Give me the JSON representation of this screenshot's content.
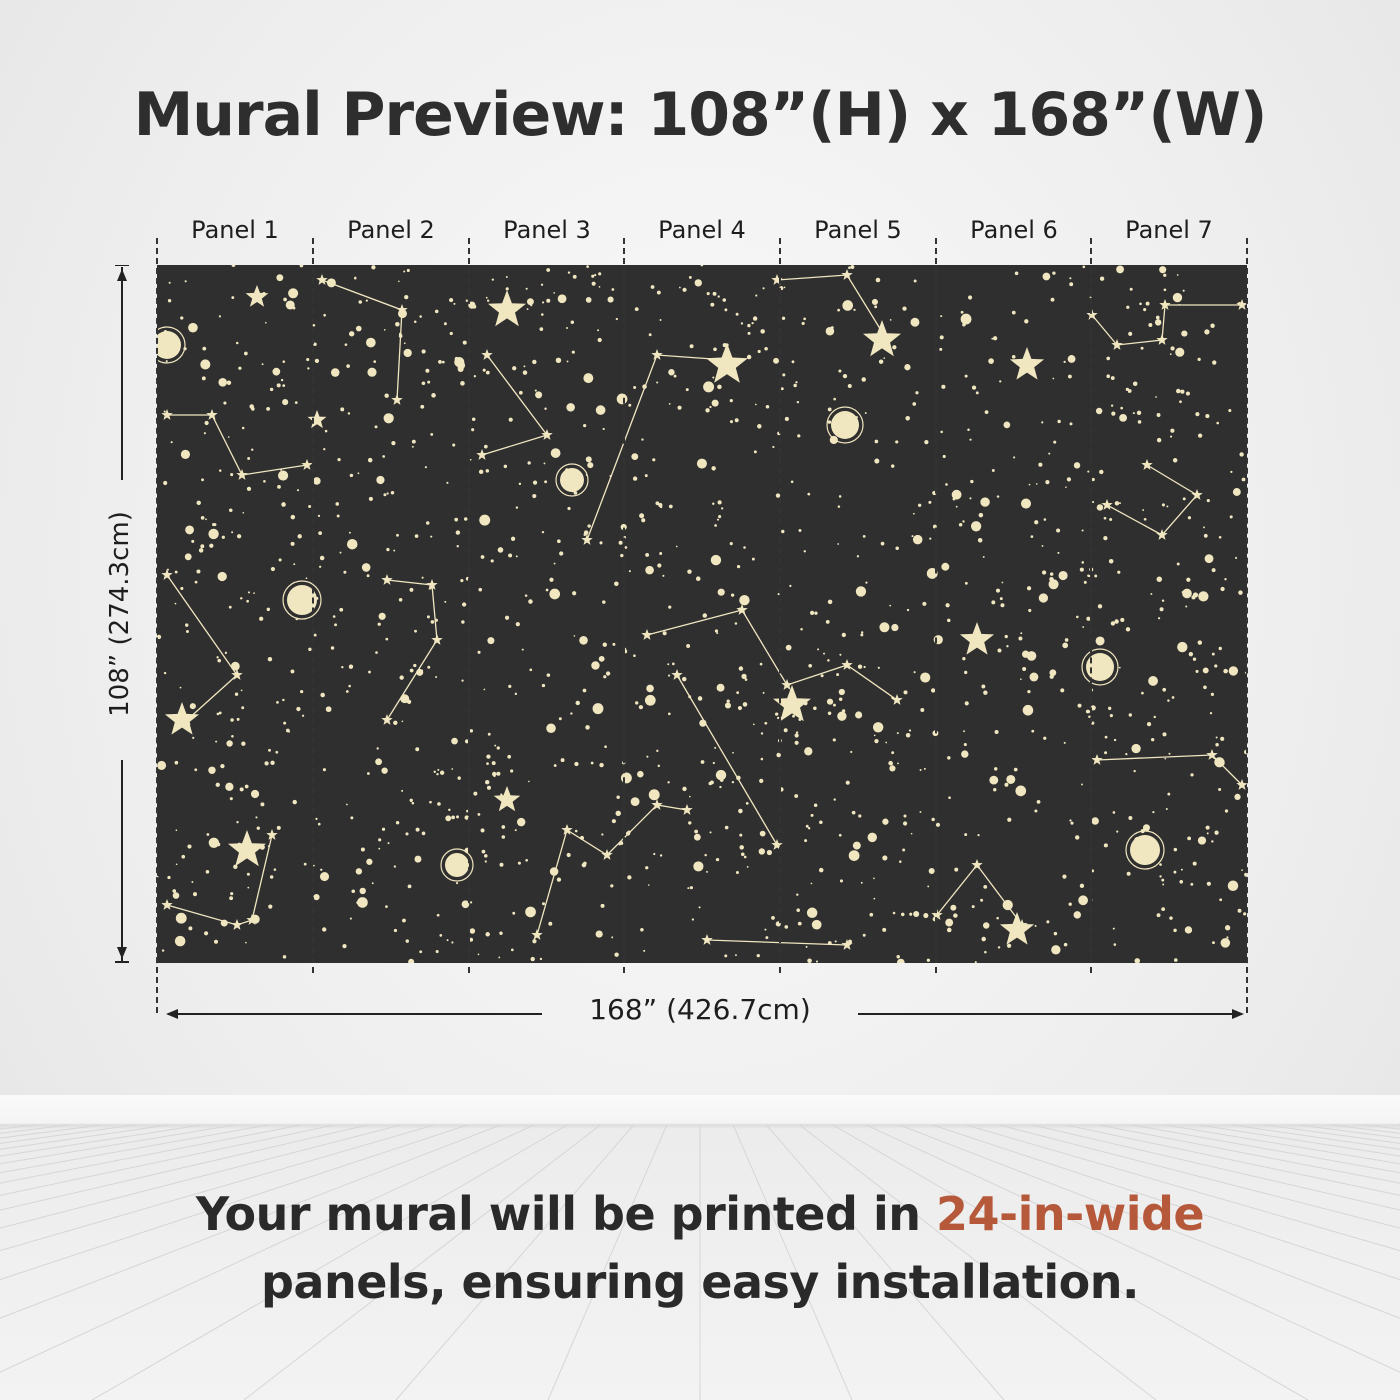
{
  "title": "Mural Preview: 108”(H) x 168”(W)",
  "panels": [
    "Panel 1",
    "Panel 2",
    "Panel 3",
    "Panel 4",
    "Panel 5",
    "Panel 6",
    "Panel 7"
  ],
  "height_dimension": "108” (274.3cm)",
  "width_dimension": "168” (426.7cm)",
  "caption": {
    "part1": "Your mural will be printed in ",
    "highlight": "24-in-wide",
    "part2": "panels, ensuring easy installation."
  },
  "colors": {
    "mural_bg": "#2f2f2f",
    "star": "#f0e6c0",
    "accent": "#b5593a"
  },
  "mural_pattern": "constellation-star-field"
}
